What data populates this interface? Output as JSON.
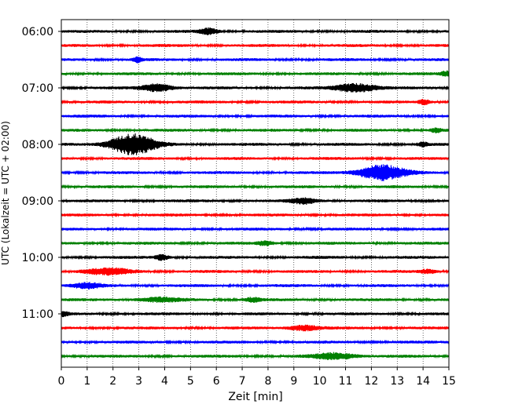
{
  "chart_data": {
    "type": "line",
    "title": "",
    "xlabel": "Zeit  [min]",
    "ylabel": "UTC (Lokalzeit = UTC + 02:00)",
    "xlim": [
      0,
      15
    ],
    "x_ticks": [
      "0",
      "1",
      "2",
      "3",
      "4",
      "5",
      "6",
      "7",
      "8",
      "9",
      "10",
      "11",
      "12",
      "13",
      "14",
      "15"
    ],
    "y_tick_labels": [
      "06:00",
      "07:00",
      "08:00",
      "09:00",
      "10:00",
      "11:00"
    ],
    "grid": {
      "vertical": true,
      "style": "dotted"
    },
    "color_cycle": [
      "#000000",
      "#ff0000",
      "#0000ff",
      "#008000"
    ],
    "trace_interval_minutes": 15,
    "first_trace": "06:00",
    "traces": [
      {
        "start": "06:00",
        "color": "#000000",
        "events": [
          {
            "t": 5.7,
            "amp": 0.55,
            "w": 0.35
          }
        ]
      },
      {
        "start": "06:15",
        "color": "#ff0000",
        "events": []
      },
      {
        "start": "06:30",
        "color": "#0000ff",
        "events": [
          {
            "t": 2.95,
            "amp": 0.45,
            "w": 0.15
          }
        ]
      },
      {
        "start": "06:45",
        "color": "#008000",
        "events": [
          {
            "t": 14.9,
            "amp": 0.4,
            "w": 0.2
          }
        ]
      },
      {
        "start": "07:00",
        "color": "#000000",
        "events": [
          {
            "t": 3.7,
            "amp": 0.65,
            "w": 0.6
          },
          {
            "t": 11.4,
            "amp": 0.75,
            "w": 0.8
          }
        ]
      },
      {
        "start": "07:15",
        "color": "#ff0000",
        "events": [
          {
            "t": 14.05,
            "amp": 0.5,
            "w": 0.2
          }
        ]
      },
      {
        "start": "07:30",
        "color": "#0000ff",
        "events": []
      },
      {
        "start": "07:45",
        "color": "#008000",
        "events": [
          {
            "t": 14.5,
            "amp": 0.35,
            "w": 0.2
          }
        ]
      },
      {
        "start": "08:00",
        "color": "#000000",
        "events": [
          {
            "t": 2.75,
            "amp": 1.8,
            "w": 0.9
          },
          {
            "t": 14.0,
            "amp": 0.35,
            "w": 0.2
          }
        ]
      },
      {
        "start": "08:15",
        "color": "#ff0000",
        "events": []
      },
      {
        "start": "08:30",
        "color": "#0000ff",
        "events": [
          {
            "t": 12.4,
            "amp": 1.35,
            "w": 0.9
          }
        ]
      },
      {
        "start": "08:45",
        "color": "#008000",
        "events": []
      },
      {
        "start": "09:00",
        "color": "#000000",
        "events": [
          {
            "t": 9.4,
            "amp": 0.5,
            "w": 0.5
          }
        ]
      },
      {
        "start": "09:15",
        "color": "#ff0000",
        "events": []
      },
      {
        "start": "09:30",
        "color": "#0000ff",
        "events": []
      },
      {
        "start": "09:45",
        "color": "#008000",
        "events": [
          {
            "t": 7.9,
            "amp": 0.4,
            "w": 0.3
          }
        ]
      },
      {
        "start": "10:00",
        "color": "#000000",
        "events": [
          {
            "t": 3.9,
            "amp": 0.5,
            "w": 0.25
          }
        ]
      },
      {
        "start": "10:15",
        "color": "#ff0000",
        "events": [
          {
            "t": 1.8,
            "amp": 0.55,
            "w": 0.9
          },
          {
            "t": 14.2,
            "amp": 0.35,
            "w": 0.3
          }
        ]
      },
      {
        "start": "10:30",
        "color": "#0000ff",
        "events": [
          {
            "t": 1.0,
            "amp": 0.45,
            "w": 0.6
          }
        ]
      },
      {
        "start": "10:45",
        "color": "#008000",
        "events": [
          {
            "t": 3.8,
            "amp": 0.35,
            "w": 0.8
          },
          {
            "t": 7.4,
            "amp": 0.35,
            "w": 0.3
          }
        ]
      },
      {
        "start": "11:00",
        "color": "#000000",
        "events": [
          {
            "t": 0.1,
            "amp": 0.4,
            "w": 0.2
          }
        ]
      },
      {
        "start": "11:15",
        "color": "#ff0000",
        "events": [
          {
            "t": 9.4,
            "amp": 0.45,
            "w": 0.6
          }
        ]
      },
      {
        "start": "11:30",
        "color": "#0000ff",
        "events": []
      },
      {
        "start": "11:45",
        "color": "#008000",
        "events": [
          {
            "t": 10.6,
            "amp": 0.55,
            "w": 0.8
          }
        ]
      }
    ]
  }
}
